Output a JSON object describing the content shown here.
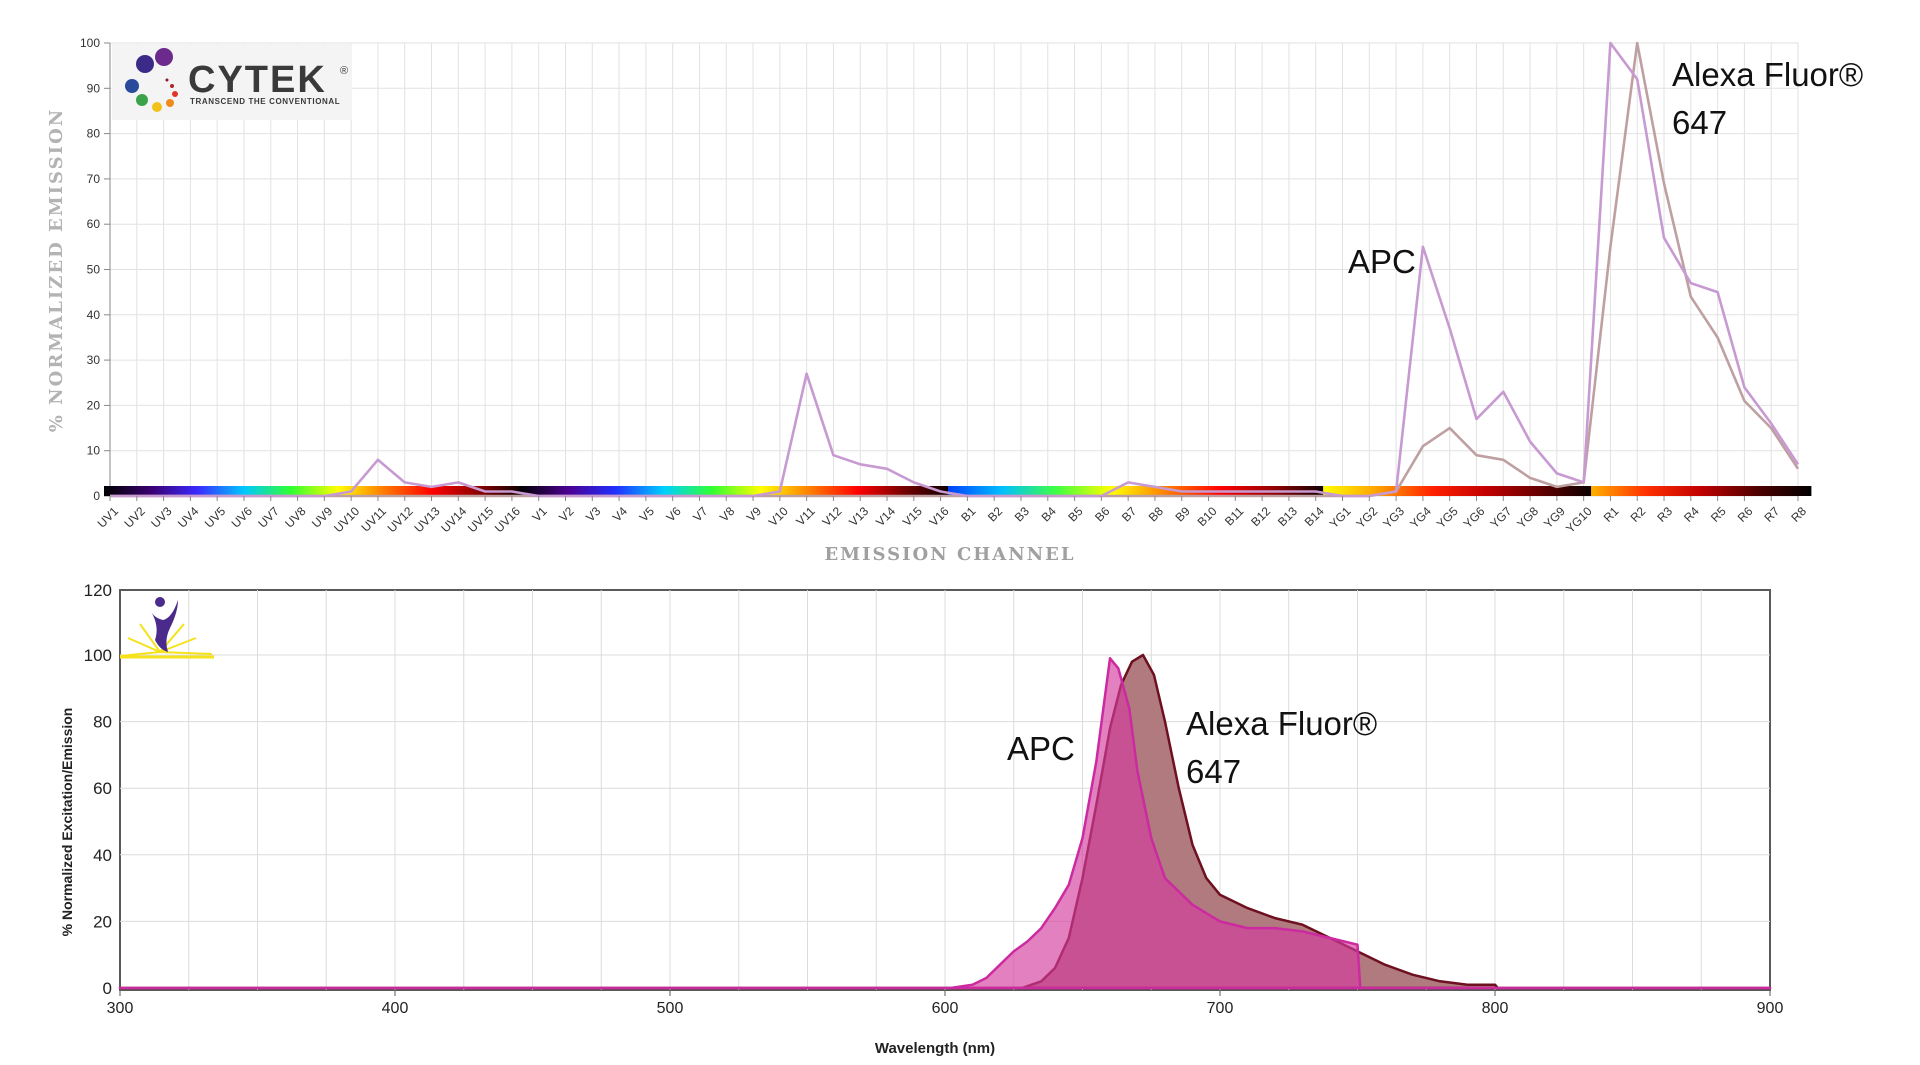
{
  "chart_data": [
    {
      "type": "line",
      "ylabel": "% NORMALIZED EMISSION",
      "xlabel": "EMISSION CHANNEL",
      "ylim": [
        0,
        100
      ],
      "yticks": [
        0,
        10,
        20,
        30,
        40,
        50,
        60,
        70,
        80,
        90,
        100
      ],
      "grid": true,
      "logo": {
        "name": "CYTEK",
        "registered": "®",
        "tagline": "TRANSCEND THE CONVENTIONAL"
      },
      "categories": [
        "UV1",
        "UV2",
        "UV3",
        "UV4",
        "UV5",
        "UV6",
        "UV7",
        "UV8",
        "UV9",
        "UV10",
        "UV11",
        "UV12",
        "UV13",
        "UV14",
        "UV15",
        "UV16",
        "V1",
        "V2",
        "V3",
        "V4",
        "V5",
        "V6",
        "V7",
        "V8",
        "V9",
        "V10",
        "V11",
        "V12",
        "V13",
        "V14",
        "V15",
        "V16",
        "B1",
        "B2",
        "B3",
        "B4",
        "B5",
        "B6",
        "B7",
        "B8",
        "B9",
        "B10",
        "B11",
        "B12",
        "B13",
        "B14",
        "YG1",
        "YG2",
        "YG3",
        "YG4",
        "YG5",
        "YG6",
        "YG7",
        "YG8",
        "YG9",
        "YG10",
        "R1",
        "R2",
        "R3",
        "R4",
        "R5",
        "R6",
        "R7",
        "R8"
      ],
      "laser_bands": [
        {
          "name": "UV",
          "count": 16,
          "stops": [
            "#000000",
            "#3a0070",
            "#3a2aff",
            "#00c8ff",
            "#30ff30",
            "#ffff00",
            "#ff7800",
            "#ff0000",
            "#8a0000",
            "#000000"
          ]
        },
        {
          "name": "V",
          "count": 16,
          "stops": [
            "#000000",
            "#4b0090",
            "#2030ff",
            "#00d0ff",
            "#30ff30",
            "#ffff00",
            "#ff8000",
            "#ff0000",
            "#700000",
            "#000000"
          ]
        },
        {
          "name": "B",
          "count": 14,
          "stops": [
            "#0040ff",
            "#00c0ff",
            "#40ff40",
            "#ffff00",
            "#ff8000",
            "#ff0000",
            "#900000",
            "#000000"
          ]
        },
        {
          "name": "YG",
          "count": 10,
          "stops": [
            "#ffff00",
            "#ffa000",
            "#ff2000",
            "#c00000",
            "#600000",
            "#000000"
          ]
        },
        {
          "name": "R",
          "count": 8,
          "stops": [
            "#ffb000",
            "#ff3000",
            "#c00000",
            "#500000",
            "#000000"
          ]
        }
      ],
      "series": [
        {
          "name": "APC",
          "color": "#c89ad2",
          "values": [
            0,
            0,
            0,
            0,
            0,
            0,
            0,
            0,
            0,
            1,
            8,
            3,
            2,
            3,
            1,
            1,
            0,
            0,
            0,
            0,
            0,
            0,
            0,
            0,
            0,
            1,
            27,
            9,
            7,
            6,
            3,
            1,
            0,
            0,
            0,
            0,
            0,
            0,
            3,
            2,
            1,
            1,
            1,
            1,
            1,
            1,
            0,
            0,
            1,
            55,
            37,
            17,
            23,
            12,
            5,
            3,
            100,
            92,
            57,
            47,
            45,
            24,
            16,
            7
          ]
        },
        {
          "name": "Alexa Fluor® 647",
          "color": "#bfa0a2",
          "values": [
            0,
            0,
            0,
            0,
            0,
            0,
            0,
            0,
            0,
            0,
            0,
            0,
            0,
            0,
            0,
            0,
            0,
            0,
            0,
            0,
            0,
            0,
            0,
            0,
            0,
            0,
            0,
            0,
            0,
            0,
            0,
            0,
            0,
            0,
            0,
            0,
            0,
            0,
            0,
            0,
            0,
            0,
            0,
            0,
            0,
            0,
            0,
            0,
            1,
            11,
            15,
            9,
            8,
            4,
            2,
            3,
            55,
            100,
            69,
            44,
            35,
            21,
            15,
            6
          ]
        }
      ],
      "annotations": [
        {
          "text": "APC"
        },
        {
          "text": "Alexa Fluor®",
          "line2": "647"
        }
      ]
    },
    {
      "type": "area",
      "xlabel": "Wavelength (nm)",
      "ylabel": "% Normalized Excitation/Emission",
      "xlim": [
        300,
        900
      ],
      "ylim": [
        0,
        120
      ],
      "xticks": [
        300,
        400,
        500,
        600,
        700,
        800,
        900
      ],
      "yticks": [
        0,
        20,
        40,
        60,
        80,
        100,
        120
      ],
      "grid": true,
      "series": [
        {
          "name": "Alexa Fluor® 647",
          "fill": "#b07a7e",
          "stroke": "#6e1020",
          "x": [
            300,
            628,
            635,
            640,
            645,
            650,
            655,
            660,
            664,
            668,
            672,
            676,
            680,
            685,
            690,
            695,
            700,
            710,
            720,
            730,
            740,
            750,
            760,
            770,
            780,
            790,
            800,
            801,
            900
          ],
          "y": [
            0,
            0,
            2,
            6,
            15,
            33,
            55,
            78,
            91,
            98,
            100,
            94,
            80,
            60,
            43,
            33,
            28,
            24,
            21,
            19,
            15,
            11,
            7,
            4,
            2,
            1,
            1,
            0,
            0
          ]
        },
        {
          "name": "APC",
          "fill": "#d43c9c",
          "fill_opacity": 0.65,
          "stroke": "#cc2aa0",
          "x": [
            300,
            602,
            610,
            615,
            620,
            625,
            630,
            635,
            640,
            645,
            650,
            655,
            660,
            663,
            667,
            670,
            675,
            680,
            690,
            700,
            710,
            720,
            730,
            740,
            750,
            751,
            900
          ],
          "y": [
            0,
            0,
            1,
            3,
            7,
            11,
            14,
            18,
            24,
            31,
            45,
            68,
            99,
            96,
            84,
            65,
            45,
            33,
            25,
            20,
            18,
            18,
            17,
            15,
            13,
            0,
            0
          ]
        }
      ],
      "annotations": [
        {
          "text": "APC"
        },
        {
          "text": "Alexa Fluor®",
          "line2": "647"
        }
      ]
    }
  ]
}
